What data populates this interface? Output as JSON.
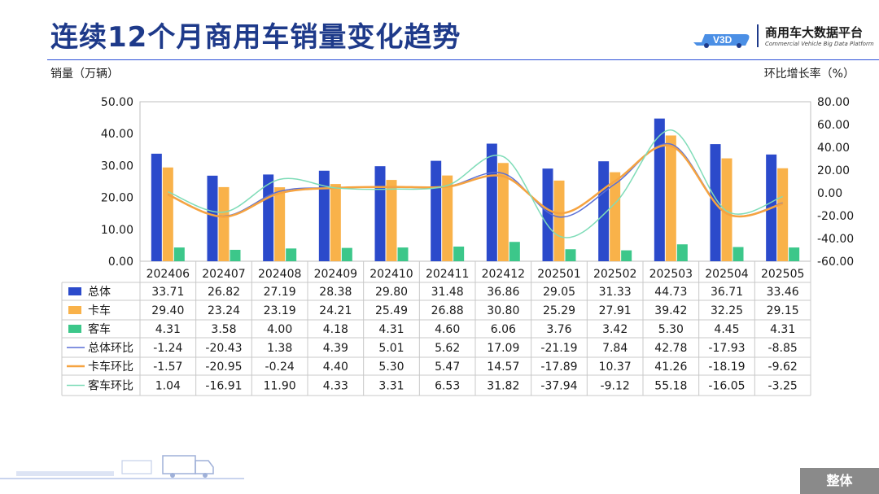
{
  "header": {
    "title": "连续12个月商用车销量变化趋势",
    "logo_cn": "商用车大数据平台",
    "logo_en": "Commercial Vehicle Big Data Platform",
    "logo_mark": "V3D"
  },
  "axis": {
    "left_label": "销量（万辆）",
    "right_label": "环比增长率（%）"
  },
  "footer": {
    "button_label": "整体"
  },
  "colors": {
    "total": "#2b4acb",
    "truck": "#f9b24a",
    "bus": "#3cc78a",
    "total_line": "#5a6fd6",
    "truck_line": "#f6a340",
    "bus_line": "#7fdcb8",
    "title": "#1e3a8a"
  },
  "chart_data": {
    "type": "bar",
    "categories": [
      "202406",
      "202407",
      "202408",
      "202409",
      "202410",
      "202411",
      "202412",
      "202501",
      "202502",
      "202503",
      "202504",
      "202505"
    ],
    "ylim_left": [
      0,
      50
    ],
    "yticks_left": [
      "0.00",
      "10.00",
      "20.00",
      "30.00",
      "40.00",
      "50.00"
    ],
    "ylim_right": [
      -60,
      80
    ],
    "yticks_right": [
      "-60.00",
      "-40.00",
      "-20.00",
      "0.00",
      "20.00",
      "40.00",
      "60.00",
      "80.00"
    ],
    "series": [
      {
        "name": "总体",
        "kind": "bar",
        "values": [
          33.71,
          26.82,
          27.19,
          28.38,
          29.8,
          31.48,
          36.86,
          29.05,
          31.33,
          44.73,
          36.71,
          33.46
        ],
        "labels": [
          "33.71",
          "26.82",
          "27.19",
          "28.38",
          "29.80",
          "31.48",
          "36.86",
          "29.05",
          "31.33",
          "44.73",
          "36.71",
          "33.46"
        ]
      },
      {
        "name": "卡车",
        "kind": "bar",
        "values": [
          29.4,
          23.24,
          23.19,
          24.21,
          25.49,
          26.88,
          30.8,
          25.29,
          27.91,
          39.42,
          32.25,
          29.15
        ],
        "labels": [
          "29.40",
          "23.24",
          "23.19",
          "24.21",
          "25.49",
          "26.88",
          "30.80",
          "25.29",
          "27.91",
          "39.42",
          "32.25",
          "29.15"
        ]
      },
      {
        "name": "客车",
        "kind": "bar",
        "values": [
          4.31,
          3.58,
          4.0,
          4.18,
          4.31,
          4.6,
          6.06,
          3.76,
          3.42,
          5.3,
          4.45,
          4.31
        ],
        "labels": [
          "4.31",
          "3.58",
          "4.00",
          "4.18",
          "4.31",
          "4.60",
          "6.06",
          "3.76",
          "3.42",
          "5.30",
          "4.45",
          "4.31"
        ]
      },
      {
        "name": "总体环比",
        "kind": "line",
        "values": [
          -1.24,
          -20.43,
          1.38,
          4.39,
          5.01,
          5.62,
          17.09,
          -21.19,
          7.84,
          42.78,
          -17.93,
          -8.85
        ],
        "labels": [
          "-1.24",
          "-20.43",
          "1.38",
          "4.39",
          "5.01",
          "5.62",
          "17.09",
          "-21.19",
          "7.84",
          "42.78",
          "-17.93",
          "-8.85"
        ]
      },
      {
        "name": "卡车环比",
        "kind": "line",
        "values": [
          -1.57,
          -20.95,
          -0.24,
          4.4,
          5.3,
          5.47,
          14.57,
          -17.89,
          10.37,
          41.26,
          -18.19,
          -9.62
        ],
        "labels": [
          "-1.57",
          "-20.95",
          "-0.24",
          "4.40",
          "5.30",
          "5.47",
          "14.57",
          "-17.89",
          "10.37",
          "41.26",
          "-18.19",
          "-9.62"
        ]
      },
      {
        "name": "客车环比",
        "kind": "line",
        "values": [
          1.04,
          -16.91,
          11.9,
          4.33,
          3.31,
          6.53,
          31.82,
          -37.94,
          -9.12,
          55.18,
          -16.05,
          -3.25
        ],
        "labels": [
          "1.04",
          "-16.91",
          "11.90",
          "4.33",
          "3.31",
          "6.53",
          "31.82",
          "-37.94",
          "-9.12",
          "55.18",
          "-16.05",
          "-3.25"
        ]
      }
    ]
  }
}
